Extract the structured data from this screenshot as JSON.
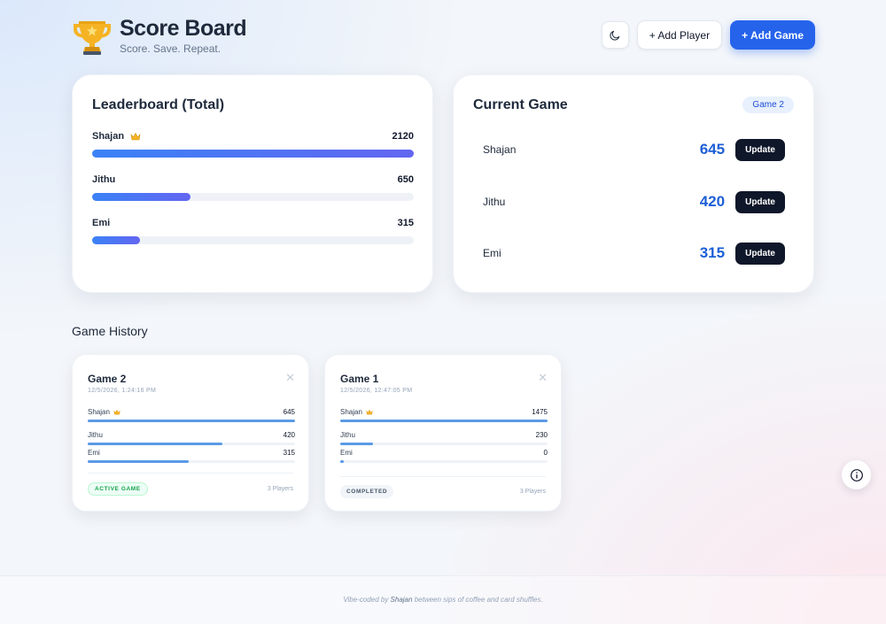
{
  "header": {
    "title": "Score Board",
    "subtitle": "Score. Save. Repeat.",
    "theme_icon": "moon-icon",
    "add_player_label": "+ Add Player",
    "add_game_label": "+ Add Game"
  },
  "leaderboard": {
    "title": "Leaderboard (Total)",
    "players": [
      {
        "name": "Shajan",
        "score": "2120",
        "leader": true,
        "fraction": 1.0
      },
      {
        "name": "Jithu",
        "score": "650",
        "leader": false,
        "fraction": 0.307
      },
      {
        "name": "Emi",
        "score": "315",
        "leader": false,
        "fraction": 0.149
      }
    ]
  },
  "current_game": {
    "title": "Current Game",
    "badge": "Game 2",
    "update_label": "Update",
    "players": [
      {
        "name": "Shajan",
        "score": "645"
      },
      {
        "name": "Jithu",
        "score": "420"
      },
      {
        "name": "Emi",
        "score": "315"
      }
    ]
  },
  "history": {
    "title": "Game History",
    "games": [
      {
        "title": "Game 2",
        "date": "12/5/2026, 1:24:16 PM",
        "status": "ACTIVE GAME",
        "players_count": "3 Players",
        "players": [
          {
            "name": "Shajan",
            "score": "645",
            "leader": true,
            "fraction": 1.0
          },
          {
            "name": "Jithu",
            "score": "420",
            "leader": false,
            "fraction": 0.651
          },
          {
            "name": "Emi",
            "score": "315",
            "leader": false,
            "fraction": 0.488
          }
        ]
      },
      {
        "title": "Game 1",
        "date": "12/5/2026, 12:47:05 PM",
        "status": "COMPLETED",
        "players_count": "3 Players",
        "players": [
          {
            "name": "Shajan",
            "score": "1475",
            "leader": true,
            "fraction": 1.0
          },
          {
            "name": "Jithu",
            "score": "230",
            "leader": false,
            "fraction": 0.156
          },
          {
            "name": "Emi",
            "score": "0",
            "leader": false,
            "fraction": 0.0
          }
        ]
      }
    ]
  },
  "footer": {
    "prefix": "Vibe-coded by",
    "author": "Shajan",
    "suffix": "between sips of coffee and card shuffles."
  },
  "colors": {
    "primary": "#2563eb",
    "score_blue": "#1d5fd6",
    "dark_button": "#0f172a",
    "active_green": "#16a34a"
  }
}
